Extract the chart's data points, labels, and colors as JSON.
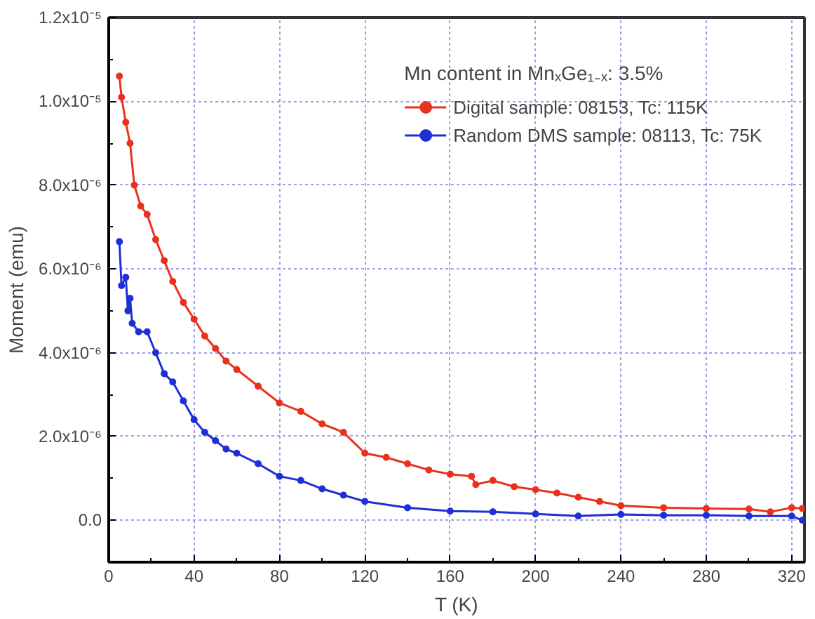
{
  "chart_data": {
    "type": "line",
    "xlabel": "T (K)",
    "ylabel": "Moment (emu)",
    "legend_title": "Mn content in MnₓGe₁₋ₓ: 3.5%",
    "legend": "top right",
    "grid": true,
    "marker": "circle",
    "xlim": [
      0,
      326
    ],
    "ylim": [
      -1e-06,
      1.2e-05
    ],
    "xticks": [
      0,
      {
        "value": 20,
        "label": null
      },
      40,
      {
        "value": 60,
        "label": null
      },
      80,
      {
        "value": 100,
        "label": null
      },
      120,
      {
        "value": 140,
        "label": null
      },
      160,
      {
        "value": 180,
        "label": null
      },
      200,
      {
        "value": 220,
        "label": null
      },
      240,
      {
        "value": 260,
        "label": null
      },
      280,
      {
        "value": 300,
        "label": null
      },
      320
    ],
    "yticks": [
      {
        "value": 0,
        "label": "0.0"
      },
      {
        "value": 1e-06,
        "label": null
      },
      {
        "value": 2e-06,
        "label": "2.0x10⁻⁶"
      },
      {
        "value": 3e-06,
        "label": null
      },
      {
        "value": 4e-06,
        "label": "4.0x10⁻⁶"
      },
      {
        "value": 5e-06,
        "label": null
      },
      {
        "value": 6e-06,
        "label": "6.0x10⁻⁶"
      },
      {
        "value": 7e-06,
        "label": null
      },
      {
        "value": 8e-06,
        "label": "8.0x10⁻⁶"
      },
      {
        "value": 9e-06,
        "label": null
      },
      {
        "value": 1e-05,
        "label": "1.0x10⁻⁵"
      },
      {
        "value": 1.1e-05,
        "label": null
      },
      {
        "value": 1.2e-05,
        "label": "1.2x10⁻⁵"
      }
    ],
    "series": [
      {
        "name": "Digital sample: 08153, Tc: 115K",
        "color": "#e8321e",
        "x": [
          5,
          6,
          8,
          10,
          12,
          15,
          18,
          22,
          26,
          30,
          35,
          40,
          45,
          50,
          55,
          60,
          70,
          80,
          90,
          100,
          110,
          120,
          130,
          140,
          150,
          160,
          170,
          172,
          180,
          190,
          200,
          210,
          220,
          230,
          240,
          260,
          280,
          300,
          310,
          320,
          325
        ],
        "values": [
          1.06e-05,
          1.01e-05,
          9.5e-06,
          9e-06,
          8e-06,
          7.5e-06,
          7.3e-06,
          6.7e-06,
          6.2e-06,
          5.7e-06,
          5.2e-06,
          4.8e-06,
          4.4e-06,
          4.1e-06,
          3.8e-06,
          3.6e-06,
          3.2e-06,
          2.8e-06,
          2.6e-06,
          2.3e-06,
          2.1e-06,
          1.6e-06,
          1.5e-06,
          1.35e-06,
          1.2e-06,
          1.1e-06,
          1.05e-06,
          8.5e-07,
          9.5e-07,
          8e-07,
          7.3e-07,
          6.5e-07,
          5.5e-07,
          4.5e-07,
          3.5e-07,
          3e-07,
          2.8e-07,
          2.7e-07,
          2e-07,
          3e-07,
          2.8e-07
        ]
      },
      {
        "name": "Random DMS sample: 08113, Tc: 75K",
        "color": "#1f2fd6",
        "x": [
          5,
          6,
          8,
          9,
          10,
          11,
          14,
          18,
          22,
          26,
          30,
          35,
          40,
          45,
          50,
          55,
          60,
          70,
          80,
          90,
          100,
          110,
          120,
          140,
          160,
          180,
          200,
          220,
          240,
          260,
          280,
          300,
          320,
          325
        ],
        "values": [
          6.65e-06,
          5.6e-06,
          5.8e-06,
          5e-06,
          5.3e-06,
          4.7e-06,
          4.5e-06,
          4.5e-06,
          4e-06,
          3.5e-06,
          3.3e-06,
          2.85e-06,
          2.4e-06,
          2.1e-06,
          1.9e-06,
          1.7e-06,
          1.6e-06,
          1.35e-06,
          1.05e-06,
          9.5e-07,
          7.5e-07,
          6e-07,
          4.5e-07,
          3e-07,
          2.2e-07,
          2e-07,
          1.5e-07,
          1e-07,
          1.4e-07,
          1.2e-07,
          1.2e-07,
          1e-07,
          1e-07,
          0.0
        ]
      }
    ]
  }
}
